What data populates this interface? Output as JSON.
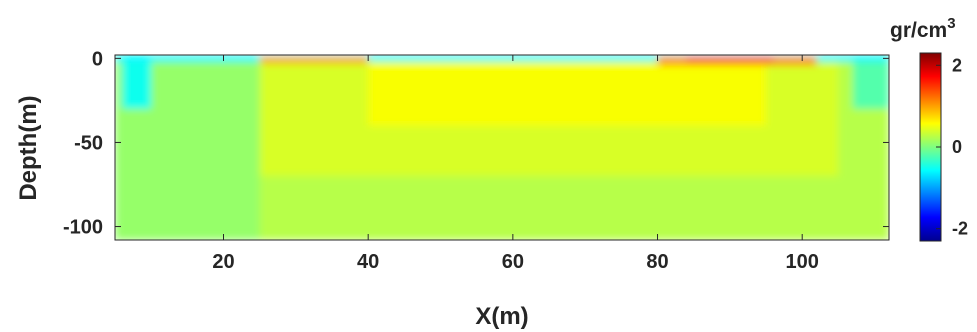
{
  "chart_data": {
    "type": "heatmap",
    "title": "",
    "xlabel": "X(m)",
    "ylabel": "Depth(m)",
    "xlim": [
      5,
      112
    ],
    "ylim": [
      -108,
      2
    ],
    "x_ticks": [
      20,
      40,
      60,
      80,
      100
    ],
    "y_ticks": [
      0,
      -50,
      -100
    ],
    "colorbar": {
      "unit_base": "gr/cm",
      "unit_exp": "3",
      "range": [
        -2.3,
        2.3
      ],
      "ticks": [
        2,
        0,
        -2
      ],
      "colormap": "jet"
    },
    "grid": false,
    "zones": [
      {
        "x": [
          5,
          112
        ],
        "y": [
          -108,
          2
        ],
        "value": 0.25
      },
      {
        "x": [
          25,
          105
        ],
        "y": [
          -70,
          2
        ],
        "value": 0.4
      },
      {
        "x": [
          40,
          95
        ],
        "y": [
          -40,
          2
        ],
        "value": 0.55
      },
      {
        "x": [
          5,
          25
        ],
        "y": [
          -108,
          2
        ],
        "value": 0.1
      },
      {
        "x": [
          6,
          10
        ],
        "y": [
          -30,
          -2
        ],
        "value": -0.5
      },
      {
        "x": [
          107,
          112
        ],
        "y": [
          -30,
          -2
        ],
        "value": -0.2
      },
      {
        "x": [
          5,
          112
        ],
        "y": [
          -2,
          2
        ],
        "value": -0.6
      },
      {
        "x": [
          25,
          40
        ],
        "y": [
          -3,
          1
        ],
        "value": 1.0
      },
      {
        "x": [
          80,
          102
        ],
        "y": [
          -4,
          1
        ],
        "value": 1.1
      },
      {
        "x": [
          84,
          96
        ],
        "y": [
          -2,
          1
        ],
        "value": 1.5
      }
    ]
  }
}
